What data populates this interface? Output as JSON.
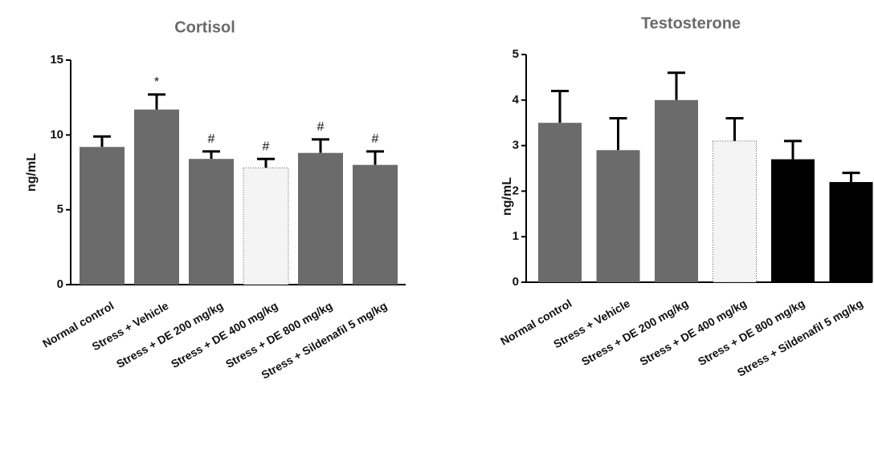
{
  "chart_data": [
    {
      "type": "bar",
      "title": "Cortisol",
      "ylabel": "ng/mL",
      "categories": [
        "Normal control",
        "Stress + Vehicle",
        "Stress + DE 200 mg/kg",
        "Stress + DE 400 mg/kg",
        "Stress + DE 800 mg/kg",
        "Stress + Sildenafil 5 mg/kg"
      ],
      "values": [
        9.2,
        11.7,
        8.4,
        7.8,
        8.8,
        8.0
      ],
      "errors": [
        0.7,
        1.0,
        0.5,
        0.6,
        0.9,
        0.9
      ],
      "colors": [
        "#6b6b6b",
        "#6b6b6b",
        "#6b6b6b",
        "#f4f4f4",
        "#6b6b6b",
        "#6b6b6b"
      ],
      "annotations": [
        null,
        "*",
        "#",
        "#",
        "#",
        "#"
      ],
      "ylim": [
        0,
        15
      ],
      "yticks": [
        0,
        5,
        10,
        15
      ]
    },
    {
      "type": "bar",
      "title": "Testosterone",
      "ylabel": "ng/mL",
      "categories": [
        "Normal control",
        "Stress + Vehicle",
        "Stress + DE 200 mg/kg",
        "Stress + DE 400 mg/kg",
        "Stress + DE 800 mg/kg",
        "Stress + Sildenafil 5 mg/kg"
      ],
      "values": [
        3.5,
        2.9,
        4.0,
        3.1,
        2.7,
        2.2
      ],
      "errors": [
        0.7,
        0.7,
        0.6,
        0.5,
        0.4,
        0.2
      ],
      "colors": [
        "#6b6b6b",
        "#6b6b6b",
        "#6b6b6b",
        "#f4f4f4",
        "#000000",
        "#000000"
      ],
      "ylim": [
        0,
        5
      ],
      "yticks": [
        0,
        1,
        2,
        3,
        4,
        5
      ]
    }
  ]
}
